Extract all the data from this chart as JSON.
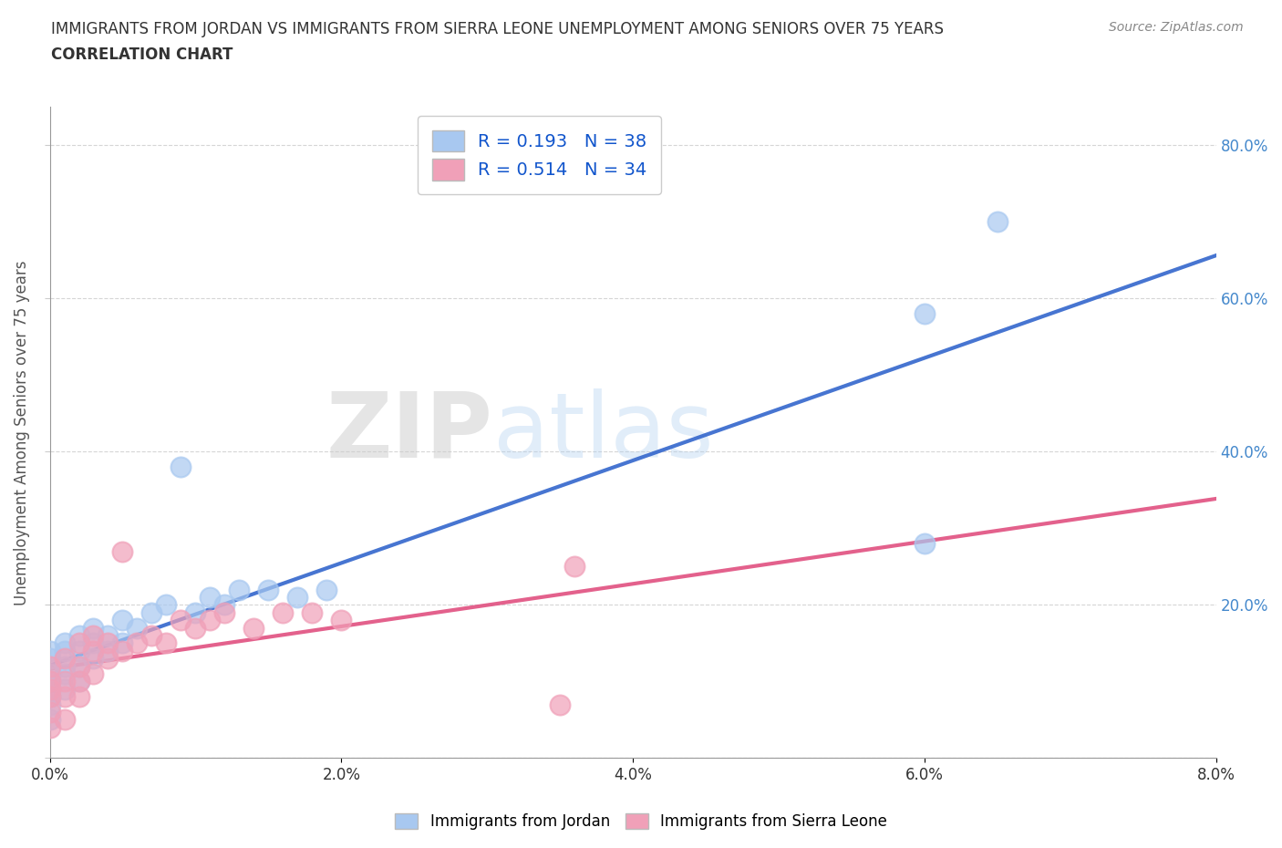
{
  "title_line1": "IMMIGRANTS FROM JORDAN VS IMMIGRANTS FROM SIERRA LEONE UNEMPLOYMENT AMONG SENIORS OVER 75 YEARS",
  "title_line2": "CORRELATION CHART",
  "source_text": "Source: ZipAtlas.com",
  "ylabel": "Unemployment Among Seniors over 75 years",
  "xlim": [
    0.0,
    0.08
  ],
  "ylim": [
    0.0,
    0.85
  ],
  "x_ticks": [
    0.0,
    0.02,
    0.04,
    0.06,
    0.08
  ],
  "x_tick_labels": [
    "0.0%",
    "2.0%",
    "4.0%",
    "6.0%",
    "8.0%"
  ],
  "y_ticks": [
    0.0,
    0.2,
    0.4,
    0.6,
    0.8
  ],
  "y_tick_labels_right": [
    "",
    "20.0%",
    "40.0%",
    "60.0%",
    "80.0%"
  ],
  "jordan_R": 0.193,
  "jordan_N": 38,
  "sierra_R": 0.514,
  "sierra_N": 34,
  "jordan_color": "#a8c8f0",
  "sierra_color": "#f0a0b8",
  "jordan_line_color": "#3366cc",
  "sierra_line_color": "#e05080",
  "watermark_zip": "ZIP",
  "watermark_atlas": "atlas",
  "jordan_x": [
    0.0,
    0.0,
    0.0,
    0.0,
    0.0,
    0.0,
    0.0,
    0.0,
    0.001,
    0.001,
    0.001,
    0.001,
    0.001,
    0.002,
    0.002,
    0.002,
    0.002,
    0.003,
    0.003,
    0.003,
    0.004,
    0.004,
    0.005,
    0.005,
    0.006,
    0.007,
    0.008,
    0.009,
    0.01,
    0.011,
    0.012,
    0.013,
    0.015,
    0.017,
    0.019,
    0.06,
    0.06,
    0.065
  ],
  "jordan_y": [
    0.05,
    0.07,
    0.08,
    0.09,
    0.1,
    0.11,
    0.13,
    0.14,
    0.09,
    0.11,
    0.12,
    0.14,
    0.15,
    0.1,
    0.12,
    0.14,
    0.16,
    0.13,
    0.15,
    0.17,
    0.14,
    0.16,
    0.15,
    0.18,
    0.17,
    0.19,
    0.2,
    0.38,
    0.19,
    0.21,
    0.2,
    0.22,
    0.22,
    0.21,
    0.22,
    0.28,
    0.58,
    0.7
  ],
  "sierra_x": [
    0.0,
    0.0,
    0.0,
    0.0,
    0.0,
    0.0,
    0.001,
    0.001,
    0.001,
    0.001,
    0.002,
    0.002,
    0.002,
    0.002,
    0.003,
    0.003,
    0.003,
    0.004,
    0.004,
    0.005,
    0.005,
    0.006,
    0.007,
    0.008,
    0.009,
    0.01,
    0.011,
    0.012,
    0.014,
    0.016,
    0.018,
    0.02,
    0.035,
    0.036
  ],
  "sierra_y": [
    0.04,
    0.06,
    0.08,
    0.09,
    0.1,
    0.12,
    0.05,
    0.08,
    0.1,
    0.13,
    0.08,
    0.1,
    0.12,
    0.15,
    0.11,
    0.14,
    0.16,
    0.13,
    0.15,
    0.14,
    0.27,
    0.15,
    0.16,
    0.15,
    0.18,
    0.17,
    0.18,
    0.19,
    0.17,
    0.19,
    0.19,
    0.18,
    0.07,
    0.25
  ],
  "background_color": "#ffffff",
  "grid_color": "#cccccc",
  "title_color": "#333333",
  "legend_color": "#1155cc",
  "axis_label_color": "#4488cc"
}
